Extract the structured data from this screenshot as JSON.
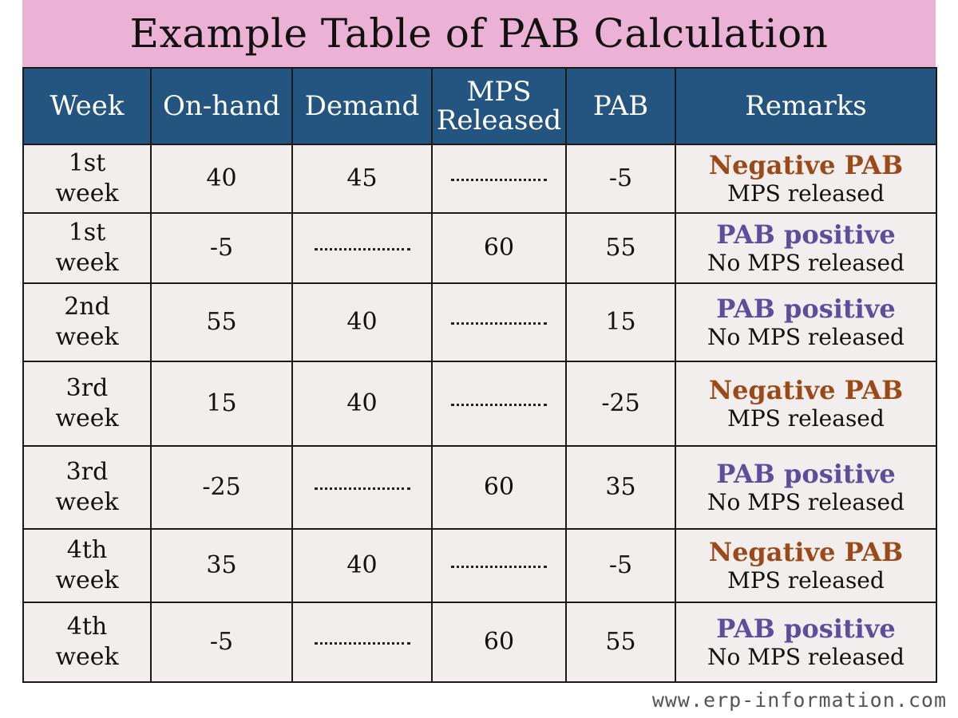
{
  "title": "Example Table of PAB Calculation",
  "colors": {
    "title_background": "#ebb2d6",
    "header_background": "#245580",
    "cell_background": "#f2eeed",
    "negative_remark": "#9a4a18",
    "positive_remark": "#5b4f9c"
  },
  "table": {
    "headers": {
      "week": "Week",
      "on_hand": "On-hand",
      "demand": "Demand",
      "mps_line1": "MPS",
      "mps_line2": "Released",
      "pab": "PAB",
      "remarks": "Remarks"
    },
    "rows": [
      {
        "week_num": "1st",
        "week_word": "week",
        "on_hand": "40",
        "demand": "45",
        "mps": "",
        "pab": "-5",
        "remark_head": "Negative PAB",
        "remark_sub": "MPS released",
        "remark_type": "negative"
      },
      {
        "week_num": "1st",
        "week_word": "week",
        "on_hand": "-5",
        "demand": "",
        "mps": "60",
        "pab": "55",
        "remark_head": "PAB positive",
        "remark_sub": "No MPS released",
        "remark_type": "positive"
      },
      {
        "week_num": "2nd",
        "week_word": "week",
        "on_hand": "55",
        "demand": "40",
        "mps": "",
        "pab": "15",
        "remark_head": "PAB positive",
        "remark_sub": "No MPS released",
        "remark_type": "positive"
      },
      {
        "week_num": "3rd",
        "week_word": "week",
        "on_hand": "15",
        "demand": "40",
        "mps": "",
        "pab": "-25",
        "remark_head": "Negative PAB",
        "remark_sub": "MPS released",
        "remark_type": "negative"
      },
      {
        "week_num": "3rd",
        "week_word": "week",
        "on_hand": "-25",
        "demand": "",
        "mps": "60",
        "pab": "35",
        "remark_head": "PAB positive",
        "remark_sub": "No MPS released",
        "remark_type": "positive"
      },
      {
        "week_num": "4th",
        "week_word": "week",
        "on_hand": "35",
        "demand": "40",
        "mps": "",
        "pab": "-5",
        "remark_head": "Negative PAB",
        "remark_sub": "MPS released",
        "remark_type": "negative"
      },
      {
        "week_num": "4th",
        "week_word": "week",
        "on_hand": "-5",
        "demand": "",
        "mps": "60",
        "pab": "55",
        "remark_head": "PAB positive",
        "remark_sub": "No MPS released",
        "remark_type": "positive"
      }
    ]
  },
  "footer": "www.erp-information.com"
}
